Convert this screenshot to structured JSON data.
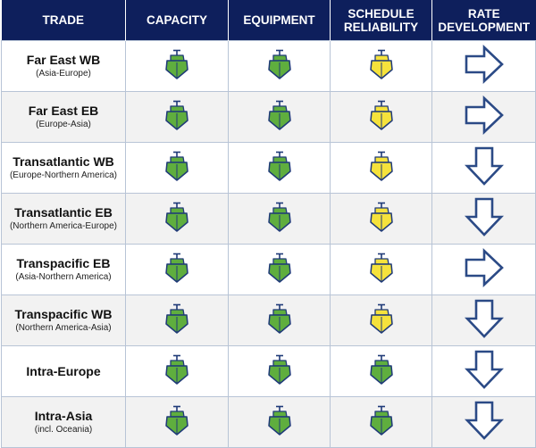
{
  "headers": {
    "trade": "TRADE",
    "capacity": "CAPACITY",
    "equipment": "EQUIPMENT",
    "schedule_line1": "SCHEDULE",
    "schedule_line2": "RELIABILITY",
    "rate_line1": "RATE",
    "rate_line2": "DEVELOPMENT"
  },
  "colors": {
    "header_bg": "#0e1f5c",
    "ship_green": "#5fae3e",
    "ship_yellow": "#f5e23c",
    "ship_outline": "#1f3a78",
    "arrow_outline": "#2b4a86"
  },
  "rows": [
    {
      "name": "Far East WB",
      "sub": "(Asia-Europe)",
      "capacity": "green",
      "equipment": "green",
      "schedule": "yellow",
      "rate": "right"
    },
    {
      "name": "Far East EB",
      "sub": "(Europe-Asia)",
      "capacity": "green",
      "equipment": "green",
      "schedule": "yellow",
      "rate": "right"
    },
    {
      "name": "Transatlantic WB",
      "sub": "(Europe-Northern America)",
      "capacity": "green",
      "equipment": "green",
      "schedule": "yellow",
      "rate": "down"
    },
    {
      "name": "Transatlantic EB",
      "sub": "(Northern America-Europe)",
      "capacity": "green",
      "equipment": "green",
      "schedule": "yellow",
      "rate": "down"
    },
    {
      "name": "Transpacific EB",
      "sub": "(Asia-Northern America)",
      "capacity": "green",
      "equipment": "green",
      "schedule": "yellow",
      "rate": "right"
    },
    {
      "name": "Transpacific WB",
      "sub": "(Northern America-Asia)",
      "capacity": "green",
      "equipment": "green",
      "schedule": "yellow",
      "rate": "down"
    },
    {
      "name": "Intra-Europe",
      "sub": "",
      "capacity": "green",
      "equipment": "green",
      "schedule": "green",
      "rate": "down"
    },
    {
      "name": "Intra-Asia",
      "sub": "(incl. Oceania)",
      "capacity": "green",
      "equipment": "green",
      "schedule": "green",
      "rate": "down"
    }
  ]
}
